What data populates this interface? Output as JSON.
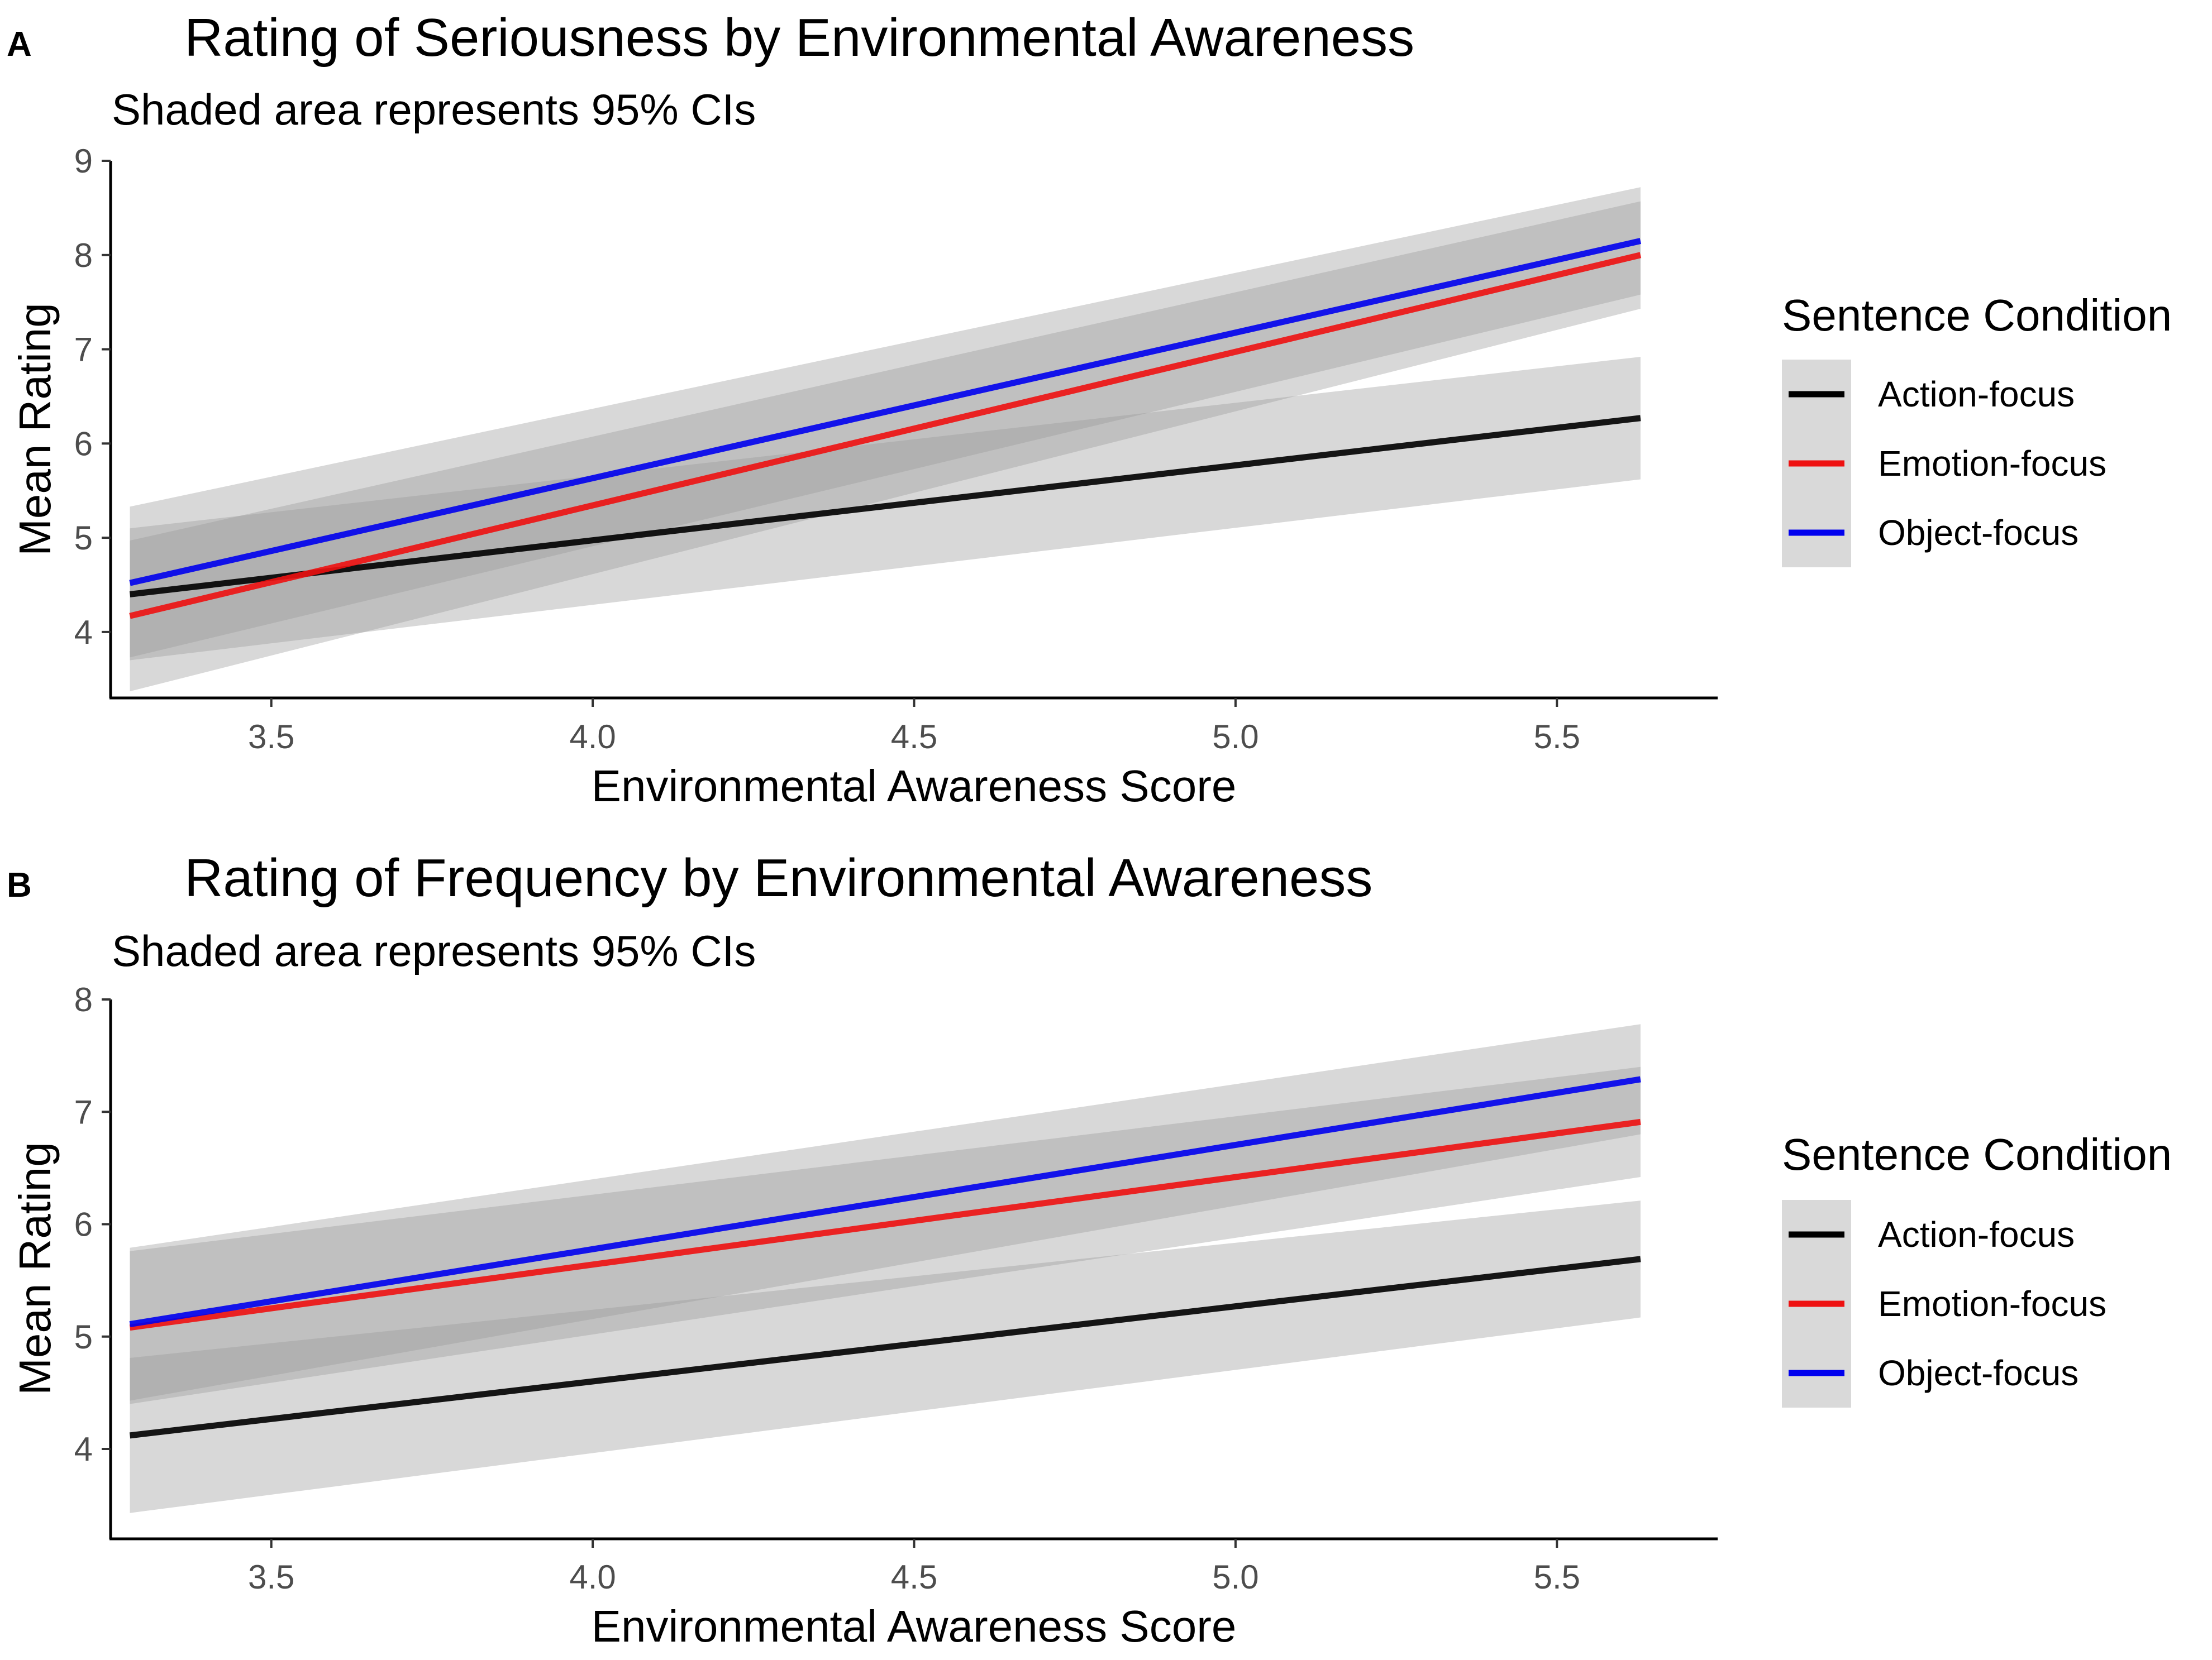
{
  "chart_data": [
    {
      "panel": "A",
      "type": "line",
      "title": "Rating of Seriousness by Environmental Awareness",
      "subtitle": "Shaded area represents 95% CIs",
      "xlabel": "Environmental Awareness Score",
      "ylabel": "Mean Rating",
      "xlim": [
        3.25,
        5.75
      ],
      "ylim": [
        3.3,
        9.0
      ],
      "xticks": [
        3.5,
        4.0,
        4.5,
        5.0,
        5.5
      ],
      "xtick_labels": [
        "3.5",
        "4.0",
        "4.5",
        "5.0",
        "5.5"
      ],
      "yticks": [
        4,
        5,
        6,
        7,
        8,
        9
      ],
      "ytick_labels": [
        "4",
        "5",
        "6",
        "7",
        "8",
        "9"
      ],
      "legend_title": "Sentence Condition",
      "series": [
        {
          "name": "Action-focus",
          "color": "#000000",
          "x": [
            3.28,
            5.63
          ],
          "y": [
            4.4,
            6.27
          ],
          "ci_lower": [
            3.7,
            5.62
          ],
          "ci_upper": [
            5.1,
            6.92
          ]
        },
        {
          "name": "Emotion-focus",
          "color": "#ee1111",
          "x": [
            3.28,
            5.63
          ],
          "y": [
            4.17,
            8.0
          ],
          "ci_lower": [
            3.37,
            7.43
          ],
          "ci_upper": [
            4.97,
            8.57
          ]
        },
        {
          "name": "Object-focus",
          "color": "#0000ee",
          "x": [
            3.28,
            5.63
          ],
          "y": [
            4.52,
            8.15
          ],
          "ci_lower": [
            3.73,
            7.58
          ],
          "ci_upper": [
            5.33,
            8.72
          ]
        }
      ]
    },
    {
      "panel": "B",
      "type": "line",
      "title": "Rating of Frequency by Environmental Awareness",
      "subtitle": "Shaded area represents 95% CIs",
      "xlabel": "Environmental Awareness Score",
      "ylabel": "Mean Rating",
      "xlim": [
        3.25,
        5.75
      ],
      "ylim": [
        3.2,
        8.0
      ],
      "xticks": [
        3.5,
        4.0,
        4.5,
        5.0,
        5.5
      ],
      "xtick_labels": [
        "3.5",
        "4.0",
        "4.5",
        "5.0",
        "5.5"
      ],
      "yticks": [
        4,
        5,
        6,
        7,
        8
      ],
      "ytick_labels": [
        "4",
        "5",
        "6",
        "7",
        "8"
      ],
      "legend_title": "Sentence Condition",
      "series": [
        {
          "name": "Action-focus",
          "color": "#000000",
          "x": [
            3.28,
            5.63
          ],
          "y": [
            4.12,
            5.69
          ],
          "ci_lower": [
            3.43,
            5.17
          ],
          "ci_upper": [
            4.81,
            6.21
          ]
        },
        {
          "name": "Emotion-focus",
          "color": "#ee1111",
          "x": [
            3.28,
            5.63
          ],
          "y": [
            5.08,
            6.91
          ],
          "ci_lower": [
            4.4,
            6.42
          ],
          "ci_upper": [
            5.76,
            7.4
          ]
        },
        {
          "name": "Object-focus",
          "color": "#0000ee",
          "x": [
            3.28,
            5.63
          ],
          "y": [
            5.11,
            7.29
          ],
          "ci_lower": [
            4.43,
            6.8
          ],
          "ci_upper": [
            5.79,
            7.78
          ]
        }
      ]
    }
  ],
  "styles": {
    "ci_fill": "#999999",
    "legend_key_bg": "#d9d9d9"
  }
}
